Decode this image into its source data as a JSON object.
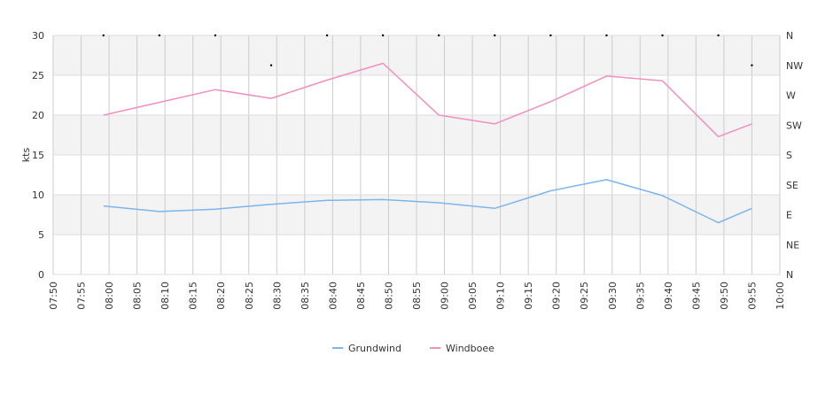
{
  "chart_data": {
    "type": "line",
    "ylabel": "kts",
    "ylim": [
      0,
      30
    ],
    "yticks": [
      0,
      5,
      10,
      15,
      20,
      25,
      30
    ],
    "xlim": [
      "07:50",
      "10:00"
    ],
    "xticks": [
      "07:50",
      "07:55",
      "08:00",
      "08:05",
      "08:10",
      "08:15",
      "08:20",
      "08:25",
      "08:30",
      "08:35",
      "08:40",
      "08:45",
      "08:50",
      "08:55",
      "09:00",
      "09:05",
      "09:10",
      "09:15",
      "09:20",
      "09:25",
      "09:30",
      "09:35",
      "09:40",
      "09:45",
      "09:50",
      "09:55",
      "10:00"
    ],
    "right_axis_labels": [
      "N",
      "NE",
      "E",
      "SE",
      "S",
      "SW",
      "W",
      "NW",
      "N"
    ],
    "direction_points": [
      {
        "x": "07:59",
        "direction": "N"
      },
      {
        "x": "08:09",
        "direction": "N"
      },
      {
        "x": "08:19",
        "direction": "N"
      },
      {
        "x": "08:29",
        "direction": "NW"
      },
      {
        "x": "08:39",
        "direction": "N"
      },
      {
        "x": "08:49",
        "direction": "N"
      },
      {
        "x": "08:59",
        "direction": "N"
      },
      {
        "x": "09:09",
        "direction": "N"
      },
      {
        "x": "09:19",
        "direction": "N"
      },
      {
        "x": "09:29",
        "direction": "N"
      },
      {
        "x": "09:39",
        "direction": "N"
      },
      {
        "x": "09:49",
        "direction": "N"
      },
      {
        "x": "09:55",
        "direction": "NW"
      }
    ],
    "series": [
      {
        "name": "Grundwind",
        "color": "#7cb5ec",
        "points": [
          {
            "x": "07:59",
            "y": 8.6
          },
          {
            "x": "08:09",
            "y": 7.9
          },
          {
            "x": "08:19",
            "y": 8.2
          },
          {
            "x": "08:29",
            "y": 8.8
          },
          {
            "x": "08:39",
            "y": 9.3
          },
          {
            "x": "08:49",
            "y": 9.4
          },
          {
            "x": "08:59",
            "y": 9.0
          },
          {
            "x": "09:09",
            "y": 8.3
          },
          {
            "x": "09:19",
            "y": 10.5
          },
          {
            "x": "09:29",
            "y": 11.9
          },
          {
            "x": "09:39",
            "y": 9.9
          },
          {
            "x": "09:49",
            "y": 6.5
          },
          {
            "x": "09:55",
            "y": 8.3
          }
        ]
      },
      {
        "name": "Windboee",
        "color": "#f28fbd",
        "points": [
          {
            "x": "07:59",
            "y": 20.0
          },
          {
            "x": "08:09",
            "y": 21.6
          },
          {
            "x": "08:19",
            "y": 23.2
          },
          {
            "x": "08:29",
            "y": 22.1
          },
          {
            "x": "08:39",
            "y": 24.4
          },
          {
            "x": "08:49",
            "y": 26.5
          },
          {
            "x": "08:59",
            "y": 20.0
          },
          {
            "x": "09:09",
            "y": 18.9
          },
          {
            "x": "09:19",
            "y": 21.7
          },
          {
            "x": "09:29",
            "y": 24.9
          },
          {
            "x": "09:39",
            "y": 24.3
          },
          {
            "x": "09:49",
            "y": 17.3
          },
          {
            "x": "09:55",
            "y": 18.9
          }
        ]
      }
    ],
    "grid": true,
    "legend": "bottom-center"
  }
}
